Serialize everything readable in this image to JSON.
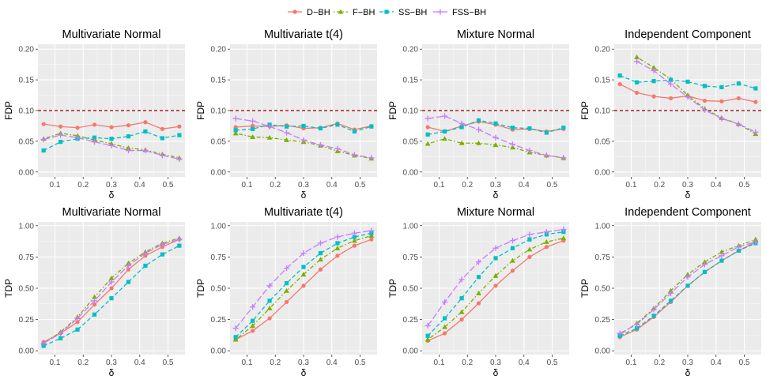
{
  "legend": {
    "entries": [
      {
        "label": "D−BH",
        "color": "#F8766D",
        "marker": "circle",
        "dash": "solid"
      },
      {
        "label": "F−BH",
        "color": "#7CAE00",
        "marker": "triangle",
        "dash": "dotdash"
      },
      {
        "label": "SS−BH",
        "color": "#00BFC4",
        "marker": "square",
        "dash": "dash"
      },
      {
        "label": "FSS−BH",
        "color": "#C77CFF",
        "marker": "cross",
        "dash": "longdash"
      }
    ]
  },
  "chart_data": [
    {
      "type": "line",
      "title": "Multivariate Normal",
      "xlabel": "δ",
      "ylabel": "FDP",
      "x": [
        0.06,
        0.12,
        0.18,
        0.24,
        0.3,
        0.36,
        0.42,
        0.48,
        0.54
      ],
      "xlim": [
        0.04,
        0.56
      ],
      "ylim": [
        -0.008,
        0.208
      ],
      "xticks": [
        "0.1",
        "0.2",
        "0.3",
        "0.4",
        "0.5"
      ],
      "xtick_values": [
        0.1,
        0.2,
        0.3,
        0.4,
        0.5
      ],
      "yticks": [
        "0.00",
        "0.05",
        "0.10",
        "0.15",
        "0.20"
      ],
      "ytick_values": [
        0,
        0.05,
        0.1,
        0.15,
        0.2
      ],
      "hline": 0.1,
      "series": [
        {
          "name": "D−BH",
          "values": [
            0.078,
            0.074,
            0.072,
            0.077,
            0.073,
            0.076,
            0.081,
            0.07,
            0.074
          ]
        },
        {
          "name": "F−BH",
          "values": [
            0.054,
            0.063,
            0.059,
            0.052,
            0.046,
            0.039,
            0.036,
            0.029,
            0.023
          ]
        },
        {
          "name": "SS−BH",
          "values": [
            0.035,
            0.049,
            0.054,
            0.056,
            0.054,
            0.058,
            0.066,
            0.055,
            0.06
          ]
        },
        {
          "name": "FSS−BH",
          "values": [
            0.053,
            0.06,
            0.056,
            0.049,
            0.043,
            0.035,
            0.035,
            0.027,
            0.021
          ]
        }
      ]
    },
    {
      "type": "line",
      "title": "Multivariate t(4)",
      "xlabel": "δ",
      "ylabel": "FDP",
      "x": [
        0.06,
        0.12,
        0.18,
        0.24,
        0.3,
        0.36,
        0.42,
        0.48,
        0.54
      ],
      "xlim": [
        0.04,
        0.56
      ],
      "ylim": [
        -0.008,
        0.208
      ],
      "xticks": [
        "0.1",
        "0.2",
        "0.3",
        "0.4",
        "0.5"
      ],
      "xtick_values": [
        0.1,
        0.2,
        0.3,
        0.4,
        0.5
      ],
      "yticks": [
        "0.00",
        "0.05",
        "0.10",
        "0.15",
        "0.20"
      ],
      "ytick_values": [
        0,
        0.05,
        0.1,
        0.15,
        0.2
      ],
      "hline": 0.1,
      "series": [
        {
          "name": "D−BH",
          "values": [
            0.073,
            0.075,
            0.074,
            0.076,
            0.071,
            0.072,
            0.079,
            0.069,
            0.075
          ]
        },
        {
          "name": "F−BH",
          "values": [
            0.063,
            0.057,
            0.056,
            0.052,
            0.049,
            0.043,
            0.034,
            0.027,
            0.022
          ]
        },
        {
          "name": "SS−BH",
          "values": [
            0.068,
            0.07,
            0.077,
            0.074,
            0.075,
            0.071,
            0.077,
            0.066,
            0.074
          ]
        },
        {
          "name": "FSS−BH",
          "values": [
            0.087,
            0.083,
            0.074,
            0.064,
            0.052,
            0.044,
            0.038,
            0.028,
            0.023
          ]
        }
      ]
    },
    {
      "type": "line",
      "title": "Mixture Normal",
      "xlabel": "δ",
      "ylabel": "FDP",
      "x": [
        0.06,
        0.12,
        0.18,
        0.24,
        0.3,
        0.36,
        0.42,
        0.48,
        0.54
      ],
      "xlim": [
        0.04,
        0.56
      ],
      "ylim": [
        -0.008,
        0.208
      ],
      "xticks": [
        "0.1",
        "0.2",
        "0.3",
        "0.4",
        "0.5"
      ],
      "xtick_values": [
        0.1,
        0.2,
        0.3,
        0.4,
        0.5
      ],
      "yticks": [
        "0.00",
        "0.05",
        "0.10",
        "0.15",
        "0.20"
      ],
      "ytick_values": [
        0,
        0.05,
        0.1,
        0.15,
        0.2
      ],
      "hline": 0.1,
      "series": [
        {
          "name": "D−BH",
          "values": [
            0.073,
            0.066,
            0.075,
            0.082,
            0.077,
            0.069,
            0.07,
            0.066,
            0.07
          ]
        },
        {
          "name": "F−BH",
          "values": [
            0.046,
            0.054,
            0.047,
            0.047,
            0.044,
            0.04,
            0.032,
            0.027,
            0.023
          ]
        },
        {
          "name": "SS−BH",
          "values": [
            0.061,
            0.066,
            0.073,
            0.084,
            0.079,
            0.072,
            0.071,
            0.064,
            0.072
          ]
        },
        {
          "name": "FSS−BH",
          "values": [
            0.087,
            0.091,
            0.079,
            0.069,
            0.056,
            0.045,
            0.035,
            0.027,
            0.023
          ]
        }
      ]
    },
    {
      "type": "line",
      "title": "Independent Component",
      "xlabel": "δ",
      "ylabel": "FDP",
      "x": [
        0.06,
        0.12,
        0.18,
        0.24,
        0.3,
        0.36,
        0.42,
        0.48,
        0.54
      ],
      "xlim": [
        0.04,
        0.56
      ],
      "ylim": [
        -0.008,
        0.208
      ],
      "xticks": [
        "0.1",
        "0.2",
        "0.3",
        "0.4",
        "0.5"
      ],
      "xtick_values": [
        0.1,
        0.2,
        0.3,
        0.4,
        0.5
      ],
      "yticks": [
        "0.00",
        "0.05",
        "0.10",
        "0.15",
        "0.20"
      ],
      "ytick_values": [
        0,
        0.05,
        0.1,
        0.15,
        0.2
      ],
      "hline": 0.1,
      "series": [
        {
          "name": "D−BH",
          "values": [
            0.143,
            0.129,
            0.123,
            0.12,
            0.124,
            0.116,
            0.115,
            0.12,
            0.114
          ]
        },
        {
          "name": "F−BH",
          "x": [
            0.12,
            0.18,
            0.24,
            0.3,
            0.36,
            0.42,
            0.48,
            0.54
          ],
          "values": [
            0.187,
            0.17,
            0.151,
            0.125,
            0.103,
            0.088,
            0.078,
            0.062
          ]
        },
        {
          "name": "SS−BH",
          "values": [
            0.157,
            0.146,
            0.148,
            0.15,
            0.147,
            0.14,
            0.138,
            0.144,
            0.136
          ]
        },
        {
          "name": "FSS−BH",
          "x": [
            0.12,
            0.18,
            0.24,
            0.3,
            0.36,
            0.42,
            0.48,
            0.54
          ],
          "values": [
            0.18,
            0.165,
            0.143,
            0.122,
            0.101,
            0.087,
            0.078,
            0.065
          ]
        }
      ]
    },
    {
      "type": "line",
      "title": "Multivariate Normal",
      "xlabel": "δ",
      "ylabel": "TDP",
      "x": [
        0.06,
        0.12,
        0.18,
        0.24,
        0.3,
        0.36,
        0.42,
        0.48,
        0.54
      ],
      "xlim": [
        0.04,
        0.56
      ],
      "ylim": [
        -0.03,
        1.03
      ],
      "xticks": [
        "0.1",
        "0.2",
        "0.3",
        "0.4",
        "0.5"
      ],
      "xtick_values": [
        0.1,
        0.2,
        0.3,
        0.4,
        0.5
      ],
      "yticks": [
        "0.00",
        "0.25",
        "0.50",
        "0.75",
        "1.00"
      ],
      "ytick_values": [
        0,
        0.25,
        0.5,
        0.75,
        1.0
      ],
      "series": [
        {
          "name": "D−BH",
          "values": [
            0.07,
            0.14,
            0.23,
            0.37,
            0.5,
            0.65,
            0.76,
            0.83,
            0.89
          ]
        },
        {
          "name": "F−BH",
          "values": [
            0.06,
            0.15,
            0.27,
            0.43,
            0.58,
            0.7,
            0.79,
            0.86,
            0.9
          ]
        },
        {
          "name": "SS−BH",
          "values": [
            0.04,
            0.1,
            0.17,
            0.29,
            0.42,
            0.55,
            0.68,
            0.77,
            0.84
          ]
        },
        {
          "name": "FSS−BH",
          "values": [
            0.06,
            0.14,
            0.26,
            0.4,
            0.55,
            0.68,
            0.78,
            0.85,
            0.89
          ]
        }
      ]
    },
    {
      "type": "line",
      "title": "Multivariate t(4)",
      "xlabel": "δ",
      "ylabel": "TDP",
      "x": [
        0.06,
        0.12,
        0.18,
        0.24,
        0.3,
        0.36,
        0.42,
        0.48,
        0.54
      ],
      "xlim": [
        0.04,
        0.56
      ],
      "ylim": [
        -0.03,
        1.03
      ],
      "xticks": [
        "0.1",
        "0.2",
        "0.3",
        "0.4",
        "0.5"
      ],
      "xtick_values": [
        0.1,
        0.2,
        0.3,
        0.4,
        0.5
      ],
      "yticks": [
        "0.00",
        "0.25",
        "0.50",
        "0.75",
        "1.00"
      ],
      "ytick_values": [
        0,
        0.25,
        0.5,
        0.75,
        1.0
      ],
      "series": [
        {
          "name": "D−BH",
          "values": [
            0.09,
            0.16,
            0.26,
            0.39,
            0.52,
            0.65,
            0.76,
            0.84,
            0.89
          ]
        },
        {
          "name": "F−BH",
          "values": [
            0.09,
            0.2,
            0.34,
            0.48,
            0.61,
            0.73,
            0.82,
            0.88,
            0.92
          ]
        },
        {
          "name": "SS−BH",
          "values": [
            0.11,
            0.24,
            0.4,
            0.54,
            0.67,
            0.78,
            0.86,
            0.91,
            0.94
          ]
        },
        {
          "name": "FSS−BH",
          "values": [
            0.18,
            0.35,
            0.52,
            0.66,
            0.78,
            0.86,
            0.91,
            0.94,
            0.96
          ]
        }
      ]
    },
    {
      "type": "line",
      "title": "Mixture Normal",
      "xlabel": "δ",
      "ylabel": "TDP",
      "x": [
        0.06,
        0.12,
        0.18,
        0.24,
        0.3,
        0.36,
        0.42,
        0.48,
        0.54
      ],
      "xlim": [
        0.04,
        0.56
      ],
      "ylim": [
        -0.03,
        1.03
      ],
      "xticks": [
        "0.1",
        "0.2",
        "0.3",
        "0.4",
        "0.5"
      ],
      "xtick_values": [
        0.1,
        0.2,
        0.3,
        0.4,
        0.5
      ],
      "yticks": [
        "0.00",
        "0.25",
        "0.50",
        "0.75",
        "1.00"
      ],
      "ytick_values": [
        0,
        0.25,
        0.5,
        0.75,
        1.0
      ],
      "series": [
        {
          "name": "D−BH",
          "values": [
            0.08,
            0.14,
            0.25,
            0.38,
            0.52,
            0.64,
            0.75,
            0.83,
            0.88
          ]
        },
        {
          "name": "F−BH",
          "values": [
            0.09,
            0.19,
            0.31,
            0.46,
            0.6,
            0.72,
            0.81,
            0.87,
            0.9
          ]
        },
        {
          "name": "SS−BH",
          "values": [
            0.12,
            0.26,
            0.42,
            0.59,
            0.74,
            0.82,
            0.89,
            0.93,
            0.95
          ]
        },
        {
          "name": "FSS−BH",
          "values": [
            0.2,
            0.39,
            0.57,
            0.71,
            0.82,
            0.88,
            0.93,
            0.95,
            0.97
          ]
        }
      ]
    },
    {
      "type": "line",
      "title": "Independent Component",
      "xlabel": "δ",
      "ylabel": "TDP",
      "x": [
        0.06,
        0.12,
        0.18,
        0.24,
        0.3,
        0.36,
        0.42,
        0.48,
        0.54
      ],
      "xlim": [
        0.04,
        0.56
      ],
      "ylim": [
        -0.03,
        1.03
      ],
      "xticks": [
        "0.1",
        "0.2",
        "0.3",
        "0.4",
        "0.5"
      ],
      "xtick_values": [
        0.1,
        0.2,
        0.3,
        0.4,
        0.5
      ],
      "yticks": [
        "0.00",
        "0.25",
        "0.50",
        "0.75",
        "1.00"
      ],
      "ytick_values": [
        0,
        0.25,
        0.5,
        0.75,
        1.0
      ],
      "series": [
        {
          "name": "D−BH",
          "values": [
            0.11,
            0.17,
            0.27,
            0.39,
            0.52,
            0.63,
            0.72,
            0.8,
            0.87
          ]
        },
        {
          "name": "F−BH",
          "values": [
            0.13,
            0.22,
            0.34,
            0.48,
            0.61,
            0.71,
            0.79,
            0.84,
            0.89
          ]
        },
        {
          "name": "SS−BH",
          "values": [
            0.12,
            0.18,
            0.28,
            0.4,
            0.52,
            0.63,
            0.72,
            0.8,
            0.86
          ]
        },
        {
          "name": "FSS−BH",
          "values": [
            0.14,
            0.21,
            0.33,
            0.46,
            0.59,
            0.69,
            0.76,
            0.83,
            0.87
          ]
        }
      ]
    }
  ]
}
